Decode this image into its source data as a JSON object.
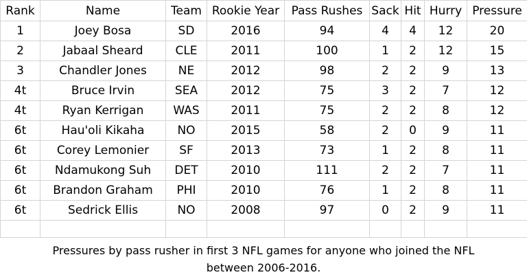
{
  "table": {
    "headers": [
      "Rank",
      "Name",
      "Team",
      "Rookie Year",
      "Pass Rushes",
      "Sack",
      "Hit",
      "Hurry",
      "Pressure"
    ],
    "rows": [
      [
        "1",
        "Joey Bosa",
        "SD",
        "2016",
        "94",
        "4",
        "4",
        "12",
        "20"
      ],
      [
        "2",
        "Jabaal Sheard",
        "CLE",
        "2011",
        "100",
        "1",
        "2",
        "12",
        "15"
      ],
      [
        "3",
        "Chandler Jones",
        "NE",
        "2012",
        "98",
        "2",
        "2",
        "9",
        "13"
      ],
      [
        "4t",
        "Bruce Irvin",
        "SEA",
        "2012",
        "75",
        "3",
        "2",
        "7",
        "12"
      ],
      [
        "4t",
        "Ryan Kerrigan",
        "WAS",
        "2011",
        "75",
        "2",
        "2",
        "8",
        "12"
      ],
      [
        "6t",
        "Hau'oli Kikaha",
        "NO",
        "2015",
        "58",
        "2",
        "0",
        "9",
        "11"
      ],
      [
        "6t",
        "Corey Lemonier",
        "SF",
        "2013",
        "73",
        "1",
        "2",
        "8",
        "11"
      ],
      [
        "6t",
        "Ndamukong Suh",
        "DET",
        "2010",
        "111",
        "2",
        "2",
        "7",
        "11"
      ],
      [
        "6t",
        "Brandon Graham",
        "PHI",
        "2010",
        "76",
        "1",
        "2",
        "8",
        "11"
      ],
      [
        "6t",
        "Sedrick Ellis",
        "NO",
        "2008",
        "97",
        "0",
        "2",
        "9",
        "11"
      ]
    ]
  },
  "caption": {
    "line1": "Pressures by pass rusher in first 3 NFL games for anyone who joined the NFL",
    "line2": "between 2006-2016."
  }
}
